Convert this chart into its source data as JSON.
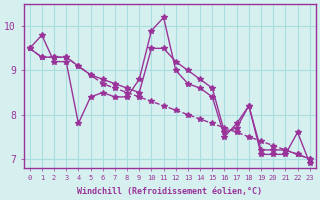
{
  "xlabel": "Windchill (Refroidissement éolien,°C)",
  "bg_color": "#d6f0f0",
  "grid_color": "#aadddd",
  "line_color": "#993399",
  "x_values": [
    0,
    1,
    2,
    3,
    4,
    5,
    6,
    7,
    8,
    9,
    10,
    11,
    12,
    13,
    14,
    15,
    16,
    17,
    18,
    19,
    20,
    21,
    22,
    23
  ],
  "line1": [
    9.5,
    9.8,
    9.2,
    9.2,
    7.8,
    8.4,
    8.5,
    8.4,
    8.4,
    8.8,
    9.9,
    10.2,
    9.0,
    8.7,
    8.6,
    8.4,
    7.5,
    7.8,
    8.2,
    7.1,
    7.1,
    7.1,
    7.6,
    6.9
  ],
  "line2": [
    9.5,
    9.3,
    9.3,
    9.3,
    9.1,
    8.9,
    8.7,
    8.6,
    8.5,
    8.4,
    8.3,
    8.2,
    8.1,
    8.0,
    7.9,
    7.8,
    7.7,
    7.6,
    7.5,
    7.4,
    7.3,
    7.2,
    7.1,
    7.0
  ],
  "line3": [
    9.5,
    9.3,
    9.3,
    9.3,
    9.1,
    8.9,
    8.8,
    8.7,
    8.6,
    8.5,
    9.5,
    9.5,
    9.2,
    9.0,
    8.8,
    8.6,
    7.6,
    7.7,
    8.2,
    7.2,
    7.2,
    7.2,
    7.1,
    7.0
  ],
  "ylim": [
    6.8,
    10.5
  ],
  "yticks": [
    7,
    8,
    9,
    10
  ],
  "xlim": [
    -0.5,
    23.5
  ]
}
